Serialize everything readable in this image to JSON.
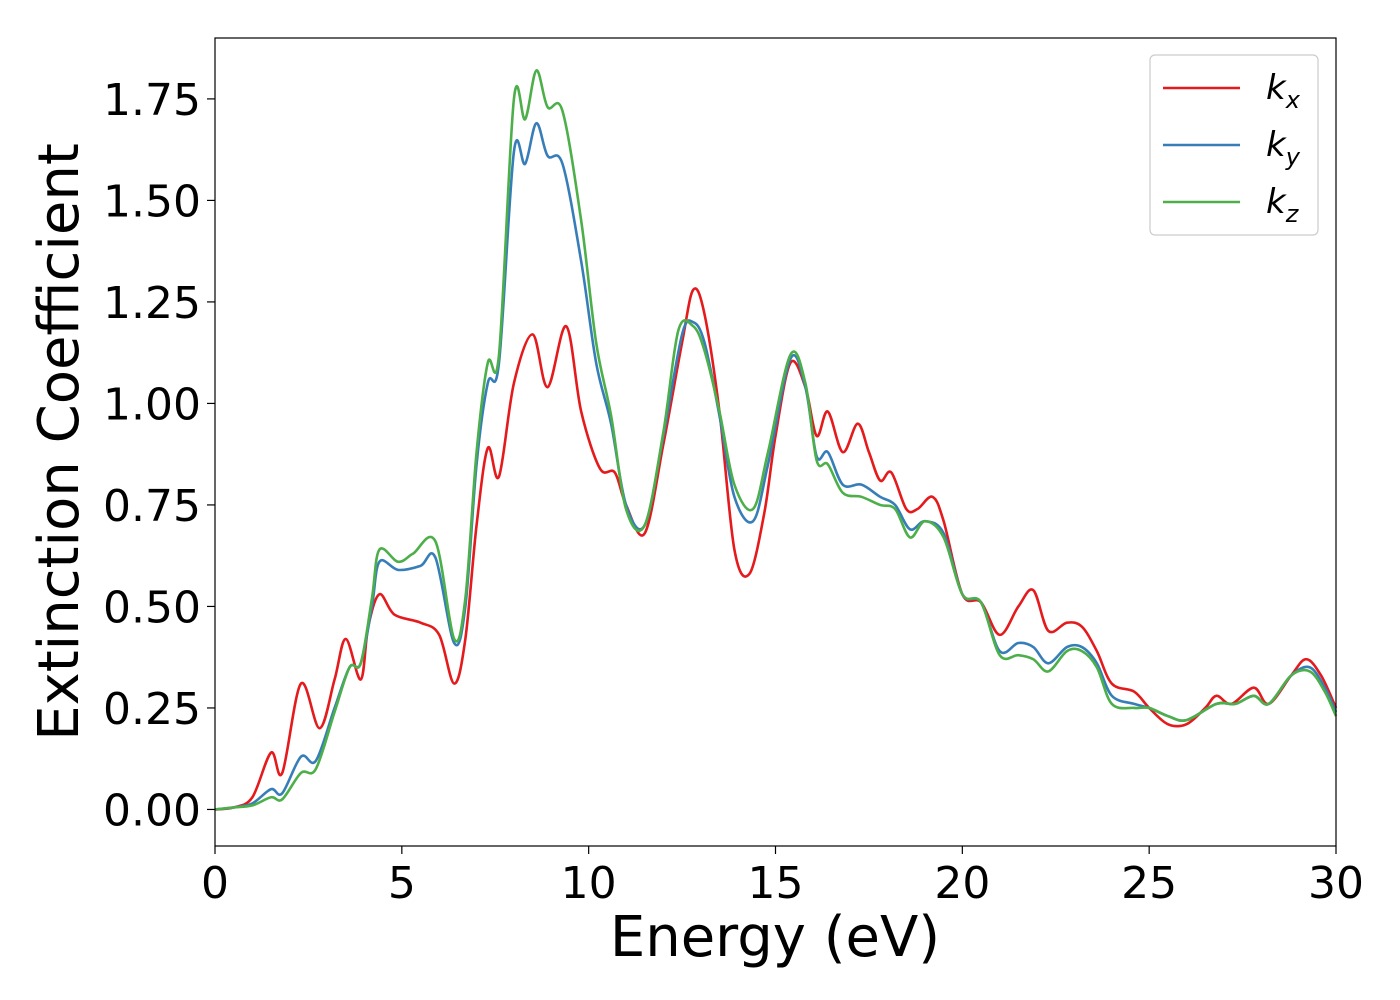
{
  "chart_data": {
    "type": "line",
    "xlabel": "Energy (eV)",
    "ylabel": "Extinction Coefficient",
    "xlim": [
      0,
      30
    ],
    "ylim": [
      -0.09,
      1.9
    ],
    "xticks": [
      0,
      5,
      10,
      15,
      20,
      25,
      30
    ],
    "xtick_labels": [
      "0",
      "5",
      "10",
      "15",
      "20",
      "25",
      "30"
    ],
    "yticks": [
      0,
      0.25,
      0.5,
      0.75,
      1.0,
      1.25,
      1.5,
      1.75
    ],
    "ytick_labels": [
      "0.00",
      "0.25",
      "0.50",
      "0.75",
      "1.00",
      "1.25",
      "1.50",
      "1.75"
    ],
    "grid": false,
    "legend_position": "top-right",
    "series": [
      {
        "name": "k_x",
        "label_main": "k",
        "label_sub": "x",
        "color": "#e41a1c",
        "points": [
          [
            0,
            0
          ],
          [
            0.5,
            0.005
          ],
          [
            1,
            0.03
          ],
          [
            1.5,
            0.14
          ],
          [
            1.8,
            0.09
          ],
          [
            2.3,
            0.31
          ],
          [
            2.8,
            0.2
          ],
          [
            3.2,
            0.32
          ],
          [
            3.5,
            0.42
          ],
          [
            3.9,
            0.32
          ],
          [
            4.1,
            0.45
          ],
          [
            4.4,
            0.53
          ],
          [
            4.8,
            0.48
          ],
          [
            5.5,
            0.46
          ],
          [
            6,
            0.43
          ],
          [
            6.4,
            0.31
          ],
          [
            6.7,
            0.42
          ],
          [
            7,
            0.7
          ],
          [
            7.3,
            0.89
          ],
          [
            7.6,
            0.82
          ],
          [
            8,
            1.05
          ],
          [
            8.5,
            1.17
          ],
          [
            8.9,
            1.04
          ],
          [
            9.4,
            1.19
          ],
          [
            9.8,
            0.98
          ],
          [
            10.3,
            0.84
          ],
          [
            10.7,
            0.83
          ],
          [
            11,
            0.75
          ],
          [
            11.5,
            0.68
          ],
          [
            12,
            0.9
          ],
          [
            12.5,
            1.15
          ],
          [
            12.8,
            1.28
          ],
          [
            13.1,
            1.22
          ],
          [
            13.5,
            0.98
          ],
          [
            13.9,
            0.64
          ],
          [
            14.3,
            0.58
          ],
          [
            14.7,
            0.73
          ],
          [
            15,
            0.92
          ],
          [
            15.4,
            1.1
          ],
          [
            15.8,
            1.04
          ],
          [
            16.1,
            0.92
          ],
          [
            16.4,
            0.98
          ],
          [
            16.8,
            0.88
          ],
          [
            17.2,
            0.95
          ],
          [
            17.5,
            0.88
          ],
          [
            17.8,
            0.81
          ],
          [
            18.1,
            0.83
          ],
          [
            18.5,
            0.74
          ],
          [
            18.8,
            0.74
          ],
          [
            19.2,
            0.77
          ],
          [
            19.5,
            0.71
          ],
          [
            20,
            0.53
          ],
          [
            20.5,
            0.51
          ],
          [
            21,
            0.43
          ],
          [
            21.5,
            0.5
          ],
          [
            21.9,
            0.54
          ],
          [
            22.3,
            0.44
          ],
          [
            22.8,
            0.46
          ],
          [
            23.2,
            0.45
          ],
          [
            23.6,
            0.39
          ],
          [
            24,
            0.31
          ],
          [
            24.6,
            0.29
          ],
          [
            25,
            0.25
          ],
          [
            25.5,
            0.21
          ],
          [
            26,
            0.21
          ],
          [
            26.5,
            0.25
          ],
          [
            26.8,
            0.28
          ],
          [
            27.2,
            0.26
          ],
          [
            27.8,
            0.3
          ],
          [
            28.2,
            0.26
          ],
          [
            28.8,
            0.33
          ],
          [
            29.2,
            0.37
          ],
          [
            29.6,
            0.33
          ],
          [
            30,
            0.25
          ]
        ]
      },
      {
        "name": "k_y",
        "label_main": "k",
        "label_sub": "y",
        "color": "#377eb8",
        "points": [
          [
            0,
            0
          ],
          [
            0.5,
            0.005
          ],
          [
            1,
            0.015
          ],
          [
            1.5,
            0.05
          ],
          [
            1.8,
            0.04
          ],
          [
            2.3,
            0.13
          ],
          [
            2.7,
            0.12
          ],
          [
            3.2,
            0.25
          ],
          [
            3.6,
            0.35
          ],
          [
            3.9,
            0.36
          ],
          [
            4.2,
            0.5
          ],
          [
            4.4,
            0.61
          ],
          [
            4.9,
            0.59
          ],
          [
            5.5,
            0.6
          ],
          [
            5.9,
            0.62
          ],
          [
            6.4,
            0.41
          ],
          [
            6.7,
            0.5
          ],
          [
            7,
            0.85
          ],
          [
            7.3,
            1.05
          ],
          [
            7.6,
            1.1
          ],
          [
            8,
            1.62
          ],
          [
            8.3,
            1.59
          ],
          [
            8.6,
            1.69
          ],
          [
            8.9,
            1.61
          ],
          [
            9.3,
            1.59
          ],
          [
            9.8,
            1.35
          ],
          [
            10.2,
            1.1
          ],
          [
            10.6,
            0.95
          ],
          [
            11,
            0.75
          ],
          [
            11.5,
            0.7
          ],
          [
            12,
            0.92
          ],
          [
            12.5,
            1.17
          ],
          [
            12.8,
            1.2
          ],
          [
            13.1,
            1.15
          ],
          [
            13.5,
            0.97
          ],
          [
            13.9,
            0.77
          ],
          [
            14.4,
            0.71
          ],
          [
            14.8,
            0.85
          ],
          [
            15.4,
            1.11
          ],
          [
            15.8,
            1.04
          ],
          [
            16.1,
            0.87
          ],
          [
            16.4,
            0.88
          ],
          [
            16.8,
            0.8
          ],
          [
            17.3,
            0.8
          ],
          [
            17.8,
            0.77
          ],
          [
            18.2,
            0.75
          ],
          [
            18.6,
            0.69
          ],
          [
            19,
            0.71
          ],
          [
            19.5,
            0.68
          ],
          [
            20,
            0.53
          ],
          [
            20.5,
            0.51
          ],
          [
            21,
            0.39
          ],
          [
            21.5,
            0.41
          ],
          [
            21.9,
            0.4
          ],
          [
            22.3,
            0.36
          ],
          [
            22.8,
            0.4
          ],
          [
            23.2,
            0.4
          ],
          [
            23.6,
            0.36
          ],
          [
            24,
            0.28
          ],
          [
            24.6,
            0.26
          ],
          [
            25,
            0.25
          ],
          [
            25.5,
            0.23
          ],
          [
            26,
            0.22
          ],
          [
            26.8,
            0.26
          ],
          [
            27.3,
            0.26
          ],
          [
            27.8,
            0.28
          ],
          [
            28.2,
            0.26
          ],
          [
            28.8,
            0.33
          ],
          [
            29.3,
            0.35
          ],
          [
            29.7,
            0.3
          ],
          [
            30,
            0.24
          ]
        ]
      },
      {
        "name": "k_z",
        "label_main": "k",
        "label_sub": "z",
        "color": "#4daf4a",
        "points": [
          [
            0,
            0
          ],
          [
            0.5,
            0.005
          ],
          [
            1,
            0.01
          ],
          [
            1.5,
            0.03
          ],
          [
            1.8,
            0.025
          ],
          [
            2.3,
            0.09
          ],
          [
            2.7,
            0.1
          ],
          [
            3.2,
            0.24
          ],
          [
            3.6,
            0.35
          ],
          [
            3.9,
            0.36
          ],
          [
            4.2,
            0.52
          ],
          [
            4.4,
            0.64
          ],
          [
            4.9,
            0.61
          ],
          [
            5.3,
            0.63
          ],
          [
            5.9,
            0.66
          ],
          [
            6.4,
            0.42
          ],
          [
            6.7,
            0.52
          ],
          [
            7,
            0.88
          ],
          [
            7.3,
            1.1
          ],
          [
            7.6,
            1.12
          ],
          [
            8,
            1.75
          ],
          [
            8.3,
            1.7
          ],
          [
            8.6,
            1.82
          ],
          [
            8.9,
            1.73
          ],
          [
            9.3,
            1.72
          ],
          [
            9.8,
            1.45
          ],
          [
            10.2,
            1.15
          ],
          [
            10.6,
            0.97
          ],
          [
            11,
            0.74
          ],
          [
            11.5,
            0.7
          ],
          [
            12,
            0.93
          ],
          [
            12.4,
            1.18
          ],
          [
            12.8,
            1.19
          ],
          [
            13.1,
            1.13
          ],
          [
            13.5,
            0.98
          ],
          [
            13.9,
            0.8
          ],
          [
            14.4,
            0.74
          ],
          [
            14.8,
            0.88
          ],
          [
            15.4,
            1.12
          ],
          [
            15.8,
            1.05
          ],
          [
            16.1,
            0.86
          ],
          [
            16.4,
            0.85
          ],
          [
            16.8,
            0.78
          ],
          [
            17.3,
            0.77
          ],
          [
            17.8,
            0.75
          ],
          [
            18.2,
            0.74
          ],
          [
            18.6,
            0.67
          ],
          [
            19,
            0.71
          ],
          [
            19.5,
            0.67
          ],
          [
            20,
            0.53
          ],
          [
            20.5,
            0.51
          ],
          [
            21,
            0.38
          ],
          [
            21.5,
            0.38
          ],
          [
            21.9,
            0.37
          ],
          [
            22.3,
            0.34
          ],
          [
            22.8,
            0.39
          ],
          [
            23.2,
            0.39
          ],
          [
            23.6,
            0.35
          ],
          [
            24,
            0.26
          ],
          [
            24.6,
            0.25
          ],
          [
            25,
            0.25
          ],
          [
            25.5,
            0.23
          ],
          [
            26,
            0.22
          ],
          [
            26.8,
            0.26
          ],
          [
            27.3,
            0.26
          ],
          [
            27.8,
            0.28
          ],
          [
            28.2,
            0.26
          ],
          [
            28.8,
            0.33
          ],
          [
            29.3,
            0.34
          ],
          [
            29.7,
            0.29
          ],
          [
            30,
            0.23
          ]
        ]
      }
    ]
  }
}
